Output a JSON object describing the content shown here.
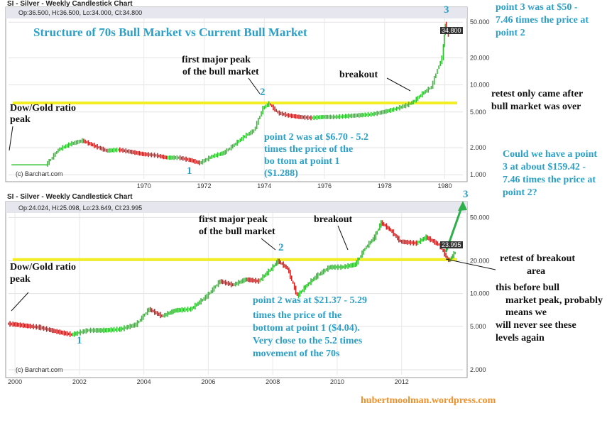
{
  "colors": {
    "up": "#2ec02e",
    "down": "#d02020",
    "ratio_line": "#f2ee22",
    "annotation_teal": "#2aa0c8",
    "annotation_black": "#111111",
    "website": "#f0902a",
    "projection_arrow": "#2db04a"
  },
  "top": {
    "title": "SI - Silver - Weekly Candlestick Chart",
    "ohlc": "Op:36.500, Hi:36.500, Lo:34.000, Cl:34.800",
    "last_price": "34.800",
    "attribution": "(c) Barchart.com",
    "heading": "Structure of 70s Bull Market vs Current Bull Market",
    "notes": {
      "point3_label": "3",
      "point2_label": "2",
      "point1_label": "1",
      "first_peak_1": "first major peak",
      "first_peak_2": "of the bull market",
      "breakout": "breakout",
      "dow_gold_1": "Dow/Gold ratio",
      "dow_gold_2": "peak",
      "p2_1": "point 2 was at $6.70 - 5.2",
      "p2_2": "times the price of the",
      "p2_3": "bo ttom at point 1",
      "p2_4": "($1.288)"
    }
  },
  "bottom": {
    "title": "SI - Silver - Weekly Candlestick Chart",
    "ohlc": "Op:24.024, Hi:25.098, Lo:23.649, Cl:23.995",
    "last_price": "23.995",
    "attribution": "(c) Barchart.com",
    "notes": {
      "point2_label": "2",
      "point1_label": "1",
      "first_peak_1": "first major peak",
      "first_peak_2": "of the bull market",
      "breakout": "breakout",
      "dow_gold_1": "Dow/Gold ratio",
      "dow_gold_2": "peak",
      "p2_1": "point 2 was at $21.37 - 5.29",
      "p2_2": "times the price of the",
      "p2_3": "bottom at point 1 ($4.04).",
      "p2_4": "Very close to the 5.2 times",
      "p2_5": "movement of the 70s"
    }
  },
  "right_notes": {
    "point3_1": "point 3 was at $50 -",
    "point3_2": "7.46 times the price at",
    "point3_3": "point 2",
    "retest_1": "retest only came after",
    "retest_2": "bull market was over",
    "could_1": "Could we have a point",
    "could_2": "3 at about $159.42 -",
    "could_3": "7.46 times the price at",
    "could_4": "point 2?",
    "proj3": "3",
    "retest_area_1": "retest of breakout",
    "retest_area_2": "area",
    "before_1": "this before bull",
    "before_2": "market peak, probably",
    "before_3": "means we",
    "before_4": "will never see these",
    "before_5": "levels again"
  },
  "website": "hubertmoolman.wordpress.com",
  "chart_data": [
    {
      "type": "line",
      "title": "SI - Silver - Weekly Candlestick Chart",
      "scale": "log",
      "ylim": [
        0.9,
        55
      ],
      "xlim": [
        1965.5,
        1980.6
      ],
      "x_ticks": [
        "1970",
        "1972",
        "1974",
        "1976",
        "1978",
        "1980"
      ],
      "y_ticks": [
        "1.000",
        "2.000",
        "5.000",
        "10.000",
        "20.000",
        "50.000"
      ],
      "x": [
        1965.6,
        1966.8,
        1967.2,
        1967.6,
        1968.0,
        1968.4,
        1968.8,
        1969.2,
        1969.6,
        1970.0,
        1970.4,
        1970.8,
        1971.2,
        1971.6,
        1971.9,
        1972.3,
        1972.7,
        1973.0,
        1973.4,
        1973.7,
        1974.0,
        1974.2,
        1974.5,
        1974.8,
        1975.2,
        1975.6,
        1976.0,
        1976.4,
        1976.8,
        1977.2,
        1977.6,
        1978.0,
        1978.4,
        1978.8,
        1979.0,
        1979.3,
        1979.6,
        1979.8,
        1979.95,
        1980.05,
        1980.15
      ],
      "values": [
        1.29,
        1.29,
        1.9,
        2.2,
        2.4,
        2.1,
        1.85,
        1.9,
        1.8,
        1.7,
        1.65,
        1.55,
        1.55,
        1.45,
        1.35,
        1.6,
        1.75,
        2.1,
        2.7,
        3.1,
        5.5,
        6.2,
        4.9,
        4.6,
        4.4,
        4.3,
        4.4,
        4.4,
        4.5,
        4.6,
        4.7,
        5.0,
        5.4,
        6.0,
        6.5,
        8.0,
        9.5,
        15.0,
        20.0,
        48.0,
        34.8
      ],
      "flat_line": {
        "x": [
          1965.6,
          1966.8
        ],
        "value": 1.29
      },
      "horizontal_level": 6.3,
      "annotations": {
        "point1": 1.29,
        "point2": 6.7,
        "point3": 50
      }
    },
    {
      "type": "line",
      "title": "SI - Silver - Weekly Candlestick Chart",
      "scale": "log",
      "ylim": [
        1.8,
        55
      ],
      "xlim": [
        1999.8,
        2013.9
      ],
      "x_ticks": [
        "2000",
        "2002",
        "2004",
        "2006",
        "2008",
        "2010",
        "2012"
      ],
      "y_ticks": [
        "2.000",
        "5.000",
        "10.000",
        "20.000",
        "50.000"
      ],
      "x": [
        1999.8,
        2000.3,
        2000.8,
        2001.3,
        2001.8,
        2002.3,
        2002.8,
        2003.3,
        2003.8,
        2004.2,
        2004.6,
        2005.0,
        2005.5,
        2006.0,
        2006.4,
        2006.8,
        2007.2,
        2007.6,
        2008.0,
        2008.2,
        2008.5,
        2008.8,
        2009.1,
        2009.4,
        2009.8,
        2010.2,
        2010.6,
        2010.9,
        2011.2,
        2011.4,
        2011.7,
        2012.0,
        2012.5,
        2012.8,
        2013.2,
        2013.5,
        2013.7
      ],
      "values": [
        5.3,
        5.1,
        4.9,
        4.5,
        4.2,
        4.6,
        4.6,
        4.7,
        5.2,
        7.2,
        6.2,
        7.0,
        7.2,
        9.5,
        13.0,
        12.0,
        13.5,
        13.0,
        17.0,
        20.0,
        17.0,
        9.5,
        12.0,
        14.5,
        17.5,
        17.5,
        18.5,
        26.0,
        33.0,
        45.0,
        38.0,
        30.0,
        29.0,
        33.0,
        28.0,
        20.0,
        23.995
      ],
      "horizontal_level": 20.5,
      "annotations": {
        "point1": 4.04,
        "point2": 21.37,
        "projected_point3": 159.42
      }
    }
  ]
}
